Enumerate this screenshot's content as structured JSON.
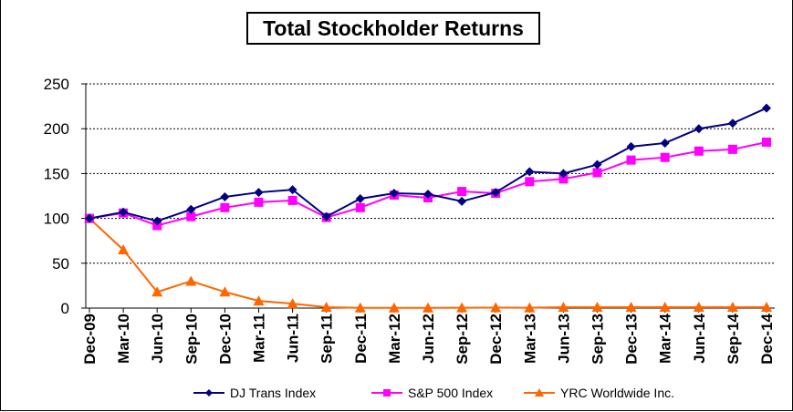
{
  "chart_data": {
    "type": "line",
    "title": "Total Stockholder Returns",
    "categories": [
      "Dec-09",
      "Mar-10",
      "Jun-10",
      "Sep-10",
      "Dec-10",
      "Mar-11",
      "Jun-11",
      "Sep-11",
      "Dec-11",
      "Mar-12",
      "Jun-12",
      "Sep-12",
      "Dec-12",
      "Mar-13",
      "Jun-13",
      "Sep-13",
      "Dec-13",
      "Mar-14",
      "Jun-14",
      "Sep-14",
      "Dec-14"
    ],
    "ylim": [
      0,
      250
    ],
    "yticks": [
      "0",
      "50",
      "100",
      "150",
      "200",
      "250"
    ],
    "grid": true,
    "legend_position": "bottom",
    "series": [
      {
        "name": "DJ Trans Index",
        "color": "#000080",
        "marker": "diamond",
        "values": [
          100,
          107,
          97,
          110,
          124,
          129,
          132,
          102,
          122,
          128,
          127,
          119,
          129,
          152,
          150,
          160,
          180,
          184,
          200,
          206,
          223
        ]
      },
      {
        "name": "S&P 500 Index",
        "color": "#ff00ff",
        "marker": "square",
        "values": [
          100,
          106,
          92,
          102,
          112,
          118,
          120,
          101,
          112,
          126,
          123,
          130,
          128,
          141,
          144,
          151,
          165,
          168,
          175,
          177,
          185
        ]
      },
      {
        "name": "YRC Worldwide Inc.",
        "color": "#ff6600",
        "marker": "triangle",
        "values": [
          100,
          65,
          18,
          30,
          18,
          8,
          5,
          1,
          0.3,
          0.3,
          0.3,
          0.4,
          0.5,
          0.4,
          1,
          1,
          1,
          1,
          1,
          1,
          1
        ]
      }
    ]
  }
}
